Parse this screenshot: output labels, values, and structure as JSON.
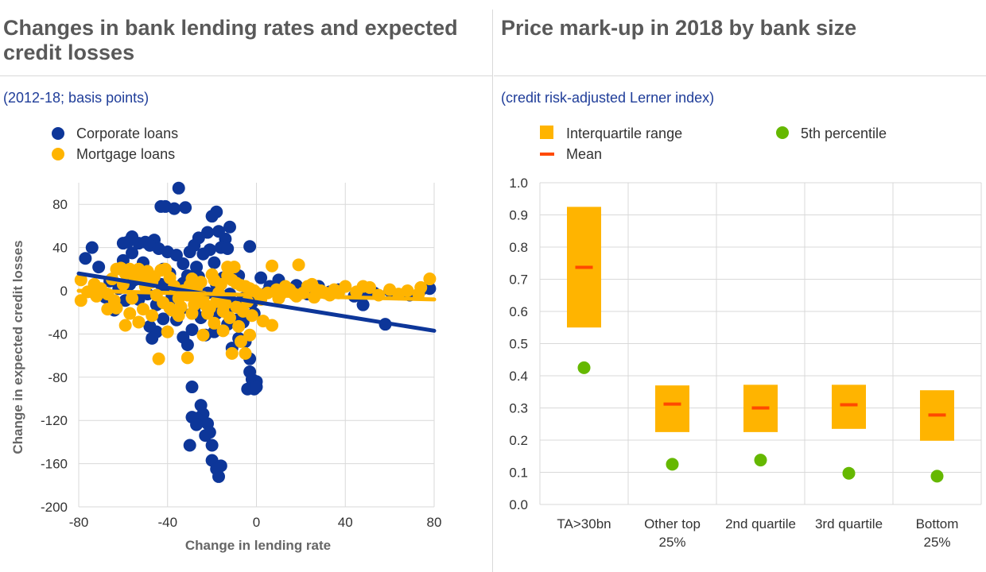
{
  "left_panel": {
    "title": "Changes in bank lending rates and expected credit losses",
    "subtitle": "(2012-18; basis points)"
  },
  "right_panel": {
    "title": "Price mark-up in 2018 by bank size",
    "subtitle": "(credit risk-adjusted Lerner index)"
  },
  "colors": {
    "corporate": "#0d3699",
    "mortgage": "#ffb400",
    "iqr": "#ffb400",
    "mean": "#ff4a00",
    "p5": "#65b800",
    "grid": "#d9d9d9"
  },
  "chart_data": [
    {
      "type": "scatter",
      "xlabel": "Change in lending rate",
      "ylabel": "Change in expected credit losses",
      "xlim": [
        -80,
        80
      ],
      "ylim": [
        -200,
        100
      ],
      "xticks": [
        -80,
        -40,
        0,
        40,
        80
      ],
      "yticks": [
        80,
        40,
        0,
        -40,
        -80,
        -120,
        -160,
        -200
      ],
      "grid": true,
      "legend_position": "top-left",
      "series": [
        {
          "name": "Corporate loans",
          "color": "#0d3699",
          "trend": [
            [
              -80,
              16
            ],
            [
              80,
              -37
            ]
          ],
          "points": [
            [
              -35,
              95
            ],
            [
              -43,
              78
            ],
            [
              -41,
              78
            ],
            [
              -32,
              77
            ],
            [
              -37,
              76
            ],
            [
              -18,
              73
            ],
            [
              -20,
              69
            ],
            [
              -12,
              59
            ],
            [
              -17,
              55
            ],
            [
              -22,
              54
            ],
            [
              -26,
              49
            ],
            [
              -14,
              48
            ],
            [
              -56,
              50
            ],
            [
              -58,
              45
            ],
            [
              -53,
              44
            ],
            [
              -50,
              45
            ],
            [
              -46,
              47
            ],
            [
              -60,
              44
            ],
            [
              -48,
              42
            ],
            [
              -44,
              39
            ],
            [
              -40,
              36
            ],
            [
              -36,
              33
            ],
            [
              -28,
              42
            ],
            [
              -30,
              36
            ],
            [
              -24,
              34
            ],
            [
              -21,
              38
            ],
            [
              -16,
              40
            ],
            [
              -13,
              39
            ],
            [
              -74,
              40
            ],
            [
              -77,
              30
            ],
            [
              -71,
              22
            ],
            [
              -60,
              28
            ],
            [
              -56,
              35
            ],
            [
              -51,
              26
            ],
            [
              -42,
              20
            ],
            [
              -33,
              25
            ],
            [
              -27,
              22
            ],
            [
              -19,
              26
            ],
            [
              -11,
              20
            ],
            [
              -8,
              14
            ],
            [
              -3,
              41
            ],
            [
              2,
              12
            ],
            [
              10,
              10
            ],
            [
              18,
              5
            ],
            [
              28,
              4
            ],
            [
              37,
              1
            ],
            [
              48,
              -4
            ],
            [
              60,
              0
            ],
            [
              -66,
              9
            ],
            [
              -62,
              2
            ],
            [
              -57,
              6
            ],
            [
              -53,
              -8
            ],
            [
              -49,
              -3
            ],
            [
              -45,
              -13
            ],
            [
              -41,
              4
            ],
            [
              -38,
              -7
            ],
            [
              -34,
              -17
            ],
            [
              -30,
              -3
            ],
            [
              -26,
              -11
            ],
            [
              -22,
              -2
            ],
            [
              -18,
              6
            ],
            [
              -14,
              -9
            ],
            [
              -10,
              -14
            ],
            [
              -6,
              -7
            ],
            [
              -2,
              -11
            ],
            [
              1,
              -4
            ],
            [
              5,
              -1
            ],
            [
              14,
              1
            ],
            [
              23,
              -3
            ],
            [
              33,
              -1
            ],
            [
              44,
              -5
            ],
            [
              53,
              -2
            ],
            [
              58,
              -31
            ],
            [
              48,
              -13
            ],
            [
              69,
              -4
            ],
            [
              75,
              2
            ],
            [
              78,
              2
            ],
            [
              -73,
              -2
            ],
            [
              -68,
              -6
            ],
            [
              -48,
              -33
            ],
            [
              -45,
              -38
            ],
            [
              -47,
              -44
            ],
            [
              -42,
              -26
            ],
            [
              -36,
              -19
            ],
            [
              -33,
              -43
            ],
            [
              -31,
              -50
            ],
            [
              -29,
              -36
            ],
            [
              -25,
              -25
            ],
            [
              -23,
              -41
            ],
            [
              -18,
              -21
            ],
            [
              -13,
              -31
            ],
            [
              -11,
              -53
            ],
            [
              -8,
              -44
            ],
            [
              -6,
              -29
            ],
            [
              -5,
              -47
            ],
            [
              -3,
              -75
            ],
            [
              -3,
              -63
            ],
            [
              -4,
              -91
            ],
            [
              -2,
              -82
            ],
            [
              -1,
              -91
            ],
            [
              0,
              -84
            ],
            [
              0,
              -89
            ],
            [
              -29,
              -89
            ],
            [
              -25,
              -106
            ],
            [
              -22,
              -123
            ],
            [
              -24,
              -114
            ],
            [
              -27,
              -118
            ],
            [
              -29,
              -117
            ],
            [
              -27,
              -124
            ],
            [
              -23,
              -134
            ],
            [
              -20,
              -143
            ],
            [
              -21,
              -131
            ],
            [
              -30,
              -143
            ],
            [
              -20,
              -157
            ],
            [
              -18,
              -165
            ],
            [
              -17,
              -172
            ],
            [
              -16,
              -162
            ],
            [
              -38,
              -5
            ],
            [
              -19,
              -38
            ],
            [
              -14,
              -18
            ],
            [
              -9,
              -27
            ],
            [
              -1,
              -21
            ],
            [
              6,
              4
            ],
            [
              12,
              4
            ],
            [
              -64,
              -18
            ],
            [
              -59,
              -9
            ],
            [
              -55,
              10
            ],
            [
              -52,
              15
            ],
            [
              -39,
              16
            ],
            [
              -31,
              14
            ],
            [
              -26,
              13
            ],
            [
              -15,
              12
            ],
            [
              -8,
              7
            ],
            [
              -33,
              7
            ],
            [
              -43,
              6
            ],
            [
              -28,
              -19
            ],
            [
              -36,
              -27
            ],
            [
              -12,
              -3
            ],
            [
              -7,
              -12
            ],
            [
              -65,
              -12
            ]
          ]
        },
        {
          "name": "Mortgage loans",
          "color": "#ffb400",
          "trend": [
            [
              -80,
              0
            ],
            [
              80,
              -8
            ]
          ],
          "points": [
            [
              -79,
              10
            ],
            [
              -79,
              -9
            ],
            [
              -76,
              -1
            ],
            [
              -73,
              6
            ],
            [
              -70,
              2
            ],
            [
              -67,
              -3
            ],
            [
              -63,
              20
            ],
            [
              -61,
              21
            ],
            [
              -59,
              16
            ],
            [
              -57,
              20
            ],
            [
              -55,
              13
            ],
            [
              -53,
              20
            ],
            [
              -51,
              10
            ],
            [
              -49,
              18
            ],
            [
              -47,
              8
            ],
            [
              -45,
              -4
            ],
            [
              -43,
              19
            ],
            [
              -41,
              20
            ],
            [
              -39,
              12
            ],
            [
              -37,
              4
            ],
            [
              -35,
              -7
            ],
            [
              -33,
              0
            ],
            [
              -31,
              -4
            ],
            [
              -29,
              11
            ],
            [
              -27,
              2
            ],
            [
              -25,
              8
            ],
            [
              -23,
              -13
            ],
            [
              -21,
              -16
            ],
            [
              -19,
              10
            ],
            [
              -17,
              -2
            ],
            [
              -15,
              -19
            ],
            [
              -13,
              14
            ],
            [
              -11,
              10
            ],
            [
              -9,
              7
            ],
            [
              -7,
              5
            ],
            [
              -5,
              4
            ],
            [
              -3,
              2
            ],
            [
              -1,
              0
            ],
            [
              1,
              -3
            ],
            [
              3,
              -28
            ],
            [
              5,
              -2
            ],
            [
              7,
              23
            ],
            [
              9,
              1
            ],
            [
              11,
              -3
            ],
            [
              13,
              4
            ],
            [
              15,
              1
            ],
            [
              17,
              -3
            ],
            [
              19,
              24
            ],
            [
              21,
              -2
            ],
            [
              23,
              4
            ],
            [
              25,
              6
            ],
            [
              27,
              1
            ],
            [
              29,
              0
            ],
            [
              31,
              -2
            ],
            [
              33,
              -4
            ],
            [
              35,
              1
            ],
            [
              37,
              -2
            ],
            [
              40,
              4
            ],
            [
              45,
              -1
            ],
            [
              48,
              4
            ],
            [
              51,
              3
            ],
            [
              55,
              -4
            ],
            [
              60,
              1
            ],
            [
              64,
              -3
            ],
            [
              68,
              0
            ],
            [
              73,
              -3
            ],
            [
              74,
              3
            ],
            [
              78,
              11
            ],
            [
              -67,
              -17
            ],
            [
              -63,
              -16
            ],
            [
              -59,
              -32
            ],
            [
              -57,
              -21
            ],
            [
              -51,
              -17
            ],
            [
              -44,
              -63
            ],
            [
              -39,
              -16
            ],
            [
              -31,
              -62
            ],
            [
              -29,
              -21
            ],
            [
              -26,
              -8
            ],
            [
              -22,
              -21
            ],
            [
              -19,
              -30
            ],
            [
              -15,
              -37
            ],
            [
              -12,
              -25
            ],
            [
              -11,
              -58
            ],
            [
              -8,
              -33
            ],
            [
              -7,
              -47
            ],
            [
              -5,
              -58
            ],
            [
              -3,
              -41
            ],
            [
              -2,
              -23
            ],
            [
              7,
              -32
            ],
            [
              -13,
              22
            ],
            [
              -10,
              22
            ],
            [
              -16,
              6
            ],
            [
              -20,
              15
            ],
            [
              -47,
              -23
            ],
            [
              -53,
              -29
            ],
            [
              -40,
              -38
            ],
            [
              -24,
              -41
            ],
            [
              -35,
              -23
            ],
            [
              -60,
              6
            ],
            [
              -64,
              -9
            ],
            [
              -72,
              -5
            ],
            [
              -65,
              11
            ],
            [
              -56,
              -7
            ],
            [
              -50,
              4
            ],
            [
              -46,
              13
            ],
            [
              -42,
              -11
            ],
            [
              -38,
              -18
            ],
            [
              -34,
              -15
            ],
            [
              -30,
              5
            ],
            [
              -28,
              -13
            ],
            [
              -24,
              -6
            ],
            [
              -18,
              -10
            ],
            [
              -14,
              -12
            ],
            [
              -6,
              -19
            ],
            [
              -4,
              -10
            ],
            [
              2,
              -8
            ],
            [
              10,
              -7
            ],
            [
              18,
              -5
            ],
            [
              26,
              -6
            ],
            [
              -9,
              -15
            ]
          ]
        }
      ]
    },
    {
      "type": "box",
      "xlabel": "",
      "ylabel": "",
      "ylim": [
        0,
        1.0
      ],
      "yticks": [
        "0.0",
        "0.1",
        "0.2",
        "0.3",
        "0.4",
        "0.5",
        "0.6",
        "0.7",
        "0.8",
        "0.9",
        "1.0"
      ],
      "grid": true,
      "legend_position": "top",
      "legend": {
        "iqr": "Interquartile range",
        "mean": "Mean",
        "p5": "5th percentile"
      },
      "categories": [
        {
          "label": [
            "TA>30bn"
          ],
          "q1": 0.55,
          "q3": 0.925,
          "mean": 0.737,
          "p5": 0.425
        },
        {
          "label": [
            "Other top",
            "25%"
          ],
          "q1": 0.225,
          "q3": 0.37,
          "mean": 0.312,
          "p5": 0.125
        },
        {
          "label": [
            "2nd quartile"
          ],
          "q1": 0.225,
          "q3": 0.372,
          "mean": 0.3,
          "p5": 0.138
        },
        {
          "label": [
            "3rd quartile"
          ],
          "q1": 0.235,
          "q3": 0.372,
          "mean": 0.31,
          "p5": 0.097
        },
        {
          "label": [
            "Bottom",
            "25%"
          ],
          "q1": 0.198,
          "q3": 0.355,
          "mean": 0.278,
          "p5": 0.088
        }
      ]
    }
  ]
}
